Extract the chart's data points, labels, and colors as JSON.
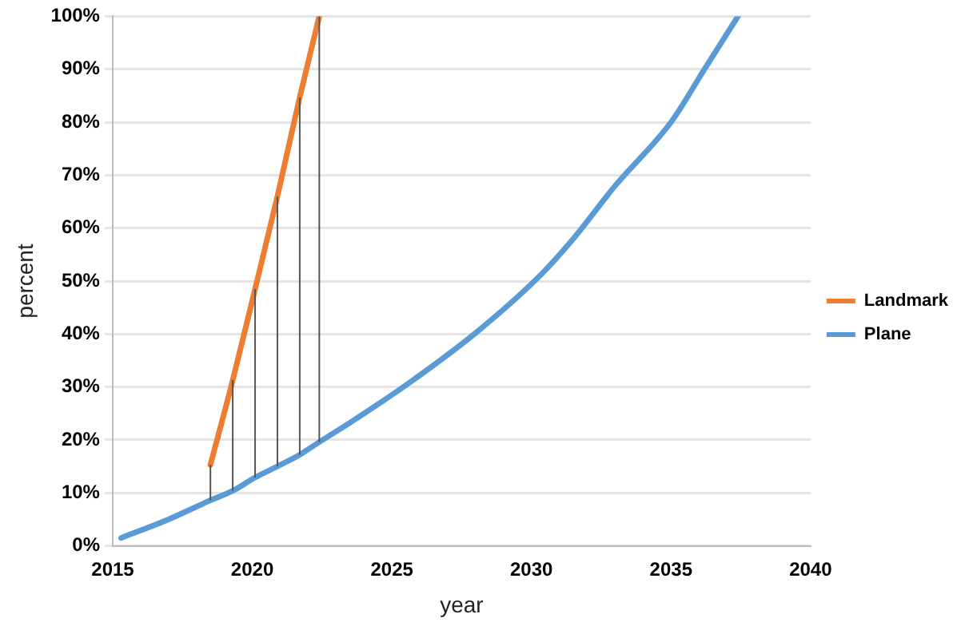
{
  "chart_data": {
    "type": "line",
    "xlabel": "year",
    "ylabel": "percent",
    "xlim": [
      2015,
      2040
    ],
    "xticks": [
      2015,
      2020,
      2025,
      2030,
      2035,
      2040
    ],
    "ylim": [
      0,
      100
    ],
    "yticks": [
      {
        "value": 0,
        "label": "0%"
      },
      {
        "value": 10,
        "label": "10%"
      },
      {
        "value": 20,
        "label": "20%"
      },
      {
        "value": 30,
        "label": "30%"
      },
      {
        "value": 40,
        "label": "40%"
      },
      {
        "value": 50,
        "label": "50%"
      },
      {
        "value": 60,
        "label": "60%"
      },
      {
        "value": 70,
        "label": "70%"
      },
      {
        "value": 80,
        "label": "80%"
      },
      {
        "value": 90,
        "label": "90%"
      },
      {
        "value": 100,
        "label": "100%"
      }
    ],
    "grid": "y",
    "legend": "right",
    "marker": "none",
    "line_style": "solid",
    "series": [
      {
        "name": "Landmark",
        "color": "#ed7d31",
        "x": [
          2018.5,
          2019.3,
          2020.1,
          2020.9,
          2021.7,
          2022.4
        ],
        "values": [
          15.3,
          31.3,
          48.5,
          66,
          84.7,
          100
        ],
        "errors": [
          [
            8.6,
            15.3
          ],
          [
            10.4,
            31.3
          ],
          [
            12.9,
            48.5
          ],
          [
            15,
            66
          ],
          [
            17.2,
            84.7
          ],
          [
            19.6,
            100
          ]
        ]
      },
      {
        "name": "Plane",
        "color": "#5b9bd5",
        "x": [
          2015.3,
          2017,
          2018.5,
          2019.3,
          2020.1,
          2020.9,
          2021.7,
          2022.4,
          2023.6,
          2025.6,
          2028,
          2030.3,
          2031.5,
          2033,
          2035,
          2036.2,
          2037.4
        ],
        "values": [
          1.5,
          5,
          8.6,
          10.4,
          12.9,
          15,
          17.2,
          19.6,
          23.6,
          30.7,
          40.2,
          51,
          58,
          68,
          80,
          90,
          100
        ]
      }
    ]
  }
}
